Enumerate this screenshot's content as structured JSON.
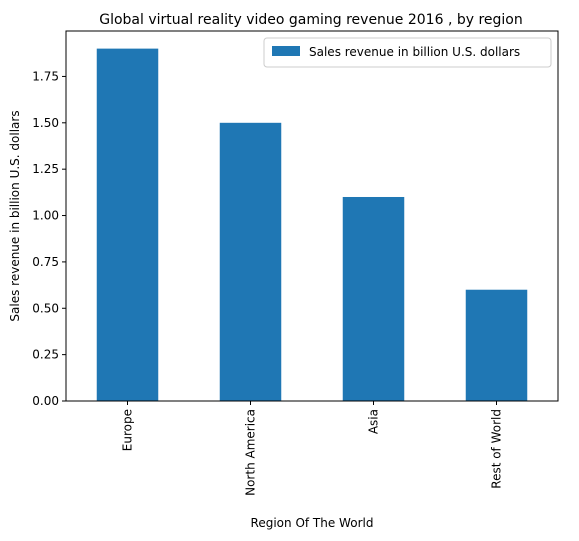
{
  "chart_data": {
    "type": "bar",
    "title": "Global virtual reality video gaming revenue 2016 , by region",
    "xlabel": "Region Of The World",
    "ylabel": "Sales revenue in billion U.S. dollars",
    "categories": [
      "Europe",
      "North America",
      "Asia",
      "Rest of World"
    ],
    "series": [
      {
        "name": "Sales revenue in billion U.S. dollars",
        "values": [
          1.9,
          1.5,
          1.1,
          0.6
        ]
      }
    ],
    "ylim": [
      0,
      1.995
    ],
    "yticks": [
      "0.00",
      "0.25",
      "0.50",
      "0.75",
      "1.00",
      "1.25",
      "1.50",
      "1.75"
    ],
    "grid": false,
    "legend_position": "top-right",
    "colors": {
      "bar": "#1f77b4",
      "axis": "#000000",
      "legend_border": "#cccccc"
    }
  }
}
